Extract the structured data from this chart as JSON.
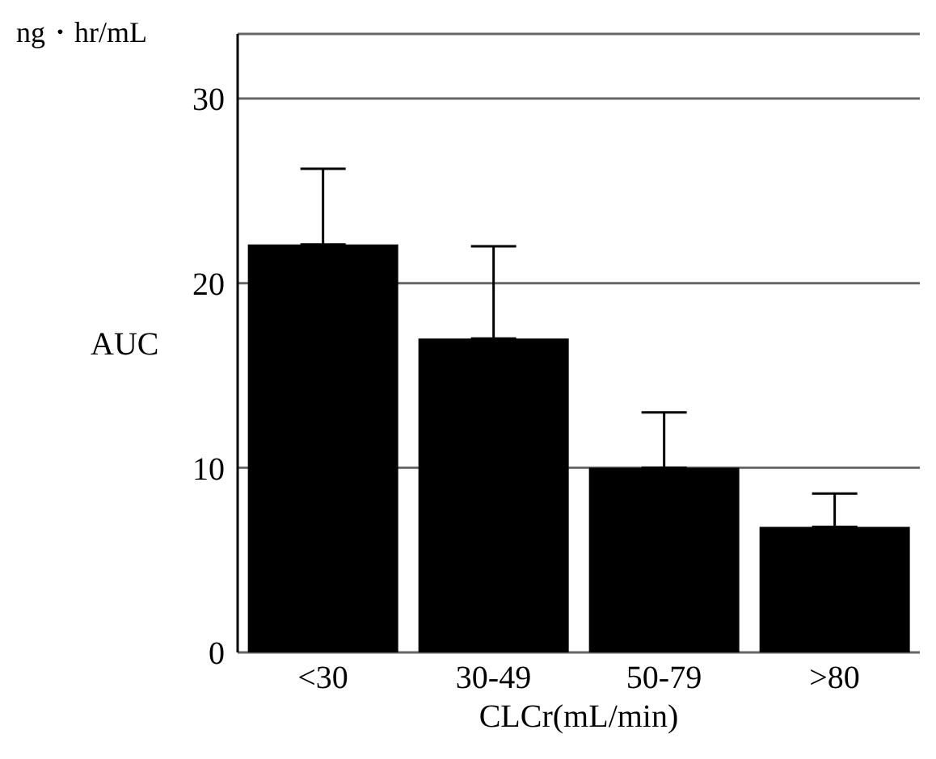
{
  "chart_data": {
    "type": "bar",
    "ylabel": "AUC",
    "xlabel": "CLCr(mL/min)",
    "annotations": [
      "ng・hr/mL"
    ],
    "categories": [
      "<30",
      "30-49",
      "50-79",
      ">80"
    ],
    "values": [
      22.1,
      17.0,
      10.0,
      6.8
    ],
    "errors": [
      [
        22.1,
        26.2
      ],
      [
        17.0,
        22.0
      ],
      [
        10.0,
        13.0
      ],
      [
        6.8,
        8.6
      ]
    ],
    "color": "#000000",
    "ylim": [
      0,
      33.5
    ],
    "yticks": [
      0,
      10,
      20,
      30
    ],
    "grid": "y"
  }
}
